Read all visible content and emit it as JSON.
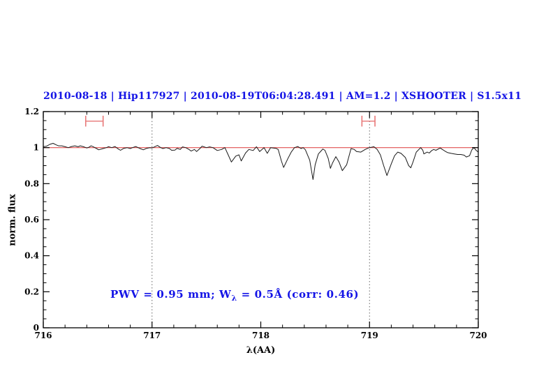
{
  "title": {
    "text": "2010-08-18 | Hip117927 | 2010-08-19T06:04:28.491 | AM=1.2 | XSHOOTER | S1.5x11",
    "color": "#1414e6"
  },
  "annotation": {
    "part1": "PWV = 0.95 mm; W",
    "sub": "λ",
    "part2": " = 0.5Å (corr: 0.46)",
    "color": "#1414e6"
  },
  "axes": {
    "x": {
      "label": "λ(AA)",
      "min": 716,
      "max": 720,
      "major_ticks": [
        716,
        717,
        718,
        719,
        720
      ],
      "major_tick_labels": [
        "716",
        "717",
        "718",
        "719",
        "720"
      ],
      "minor_step": 0.2
    },
    "y": {
      "label": "norm. flux",
      "min": 0,
      "max": 1.2,
      "major_ticks": [
        0,
        0.2,
        0.4,
        0.6,
        0.8,
        1,
        1.2
      ],
      "major_tick_labels": [
        "0",
        "0.2",
        "0.4",
        "0.6",
        "0.8",
        "1",
        "1.2"
      ],
      "minor_step": 0.05
    }
  },
  "colors": {
    "background": "#ffffff",
    "axis": "#000000",
    "spectrum": "#1a1a1a",
    "continuum": "#e05050",
    "marker": "#e87878",
    "dotted_guide": "#666666",
    "text_blue": "#1414e6"
  },
  "chart_data": {
    "type": "line",
    "title": "2010-08-18 | Hip117927 | 2010-08-19T06:04:28.491 | AM=1.2 | XSHOOTER | S1.5x11",
    "xlabel": "λ(AA)",
    "ylabel": "norm. flux",
    "xlim": [
      716,
      720
    ],
    "ylim": [
      0,
      1.2
    ],
    "grid": false,
    "legend": "none",
    "dotted_guides_x": [
      717,
      719
    ],
    "continuum_line": {
      "y": 1.0,
      "color": "#e05050"
    },
    "range_markers": [
      {
        "x_min": 716.39,
        "x_max": 716.55,
        "y": 1.147,
        "cap_half_height": 0.03,
        "color": "#e87878"
      },
      {
        "x_min": 718.93,
        "x_max": 719.05,
        "y": 1.147,
        "cap_half_height": 0.03,
        "color": "#e87878"
      }
    ],
    "series": [
      {
        "name": "normalized spectrum",
        "color": "#1a1a1a",
        "points": [
          [
            716.0,
            1.005
          ],
          [
            716.03,
            1.008
          ],
          [
            716.06,
            1.018
          ],
          [
            716.09,
            1.024
          ],
          [
            716.12,
            1.015
          ],
          [
            716.14,
            1.01
          ],
          [
            716.17,
            1.01
          ],
          [
            716.2,
            1.005
          ],
          [
            716.23,
            1.0
          ],
          [
            716.26,
            1.006
          ],
          [
            716.29,
            1.01
          ],
          [
            716.32,
            1.005
          ],
          [
            716.34,
            1.01
          ],
          [
            716.37,
            1.005
          ],
          [
            716.4,
            0.998
          ],
          [
            716.42,
            1.002
          ],
          [
            716.44,
            1.01
          ],
          [
            716.46,
            1.005
          ],
          [
            716.49,
            0.995
          ],
          [
            716.51,
            0.988
          ],
          [
            716.55,
            0.995
          ],
          [
            716.58,
            1.0
          ],
          [
            716.6,
            1.005
          ],
          [
            716.63,
            1.0
          ],
          [
            716.66,
            1.006
          ],
          [
            716.69,
            0.992
          ],
          [
            716.71,
            0.985
          ],
          [
            716.74,
            0.996
          ],
          [
            716.77,
            1.0
          ],
          [
            716.8,
            0.995
          ],
          [
            716.82,
            1.0
          ],
          [
            716.85,
            1.006
          ],
          [
            716.89,
            0.995
          ],
          [
            716.92,
            0.988
          ],
          [
            716.95,
            0.996
          ],
          [
            716.98,
            1.0
          ],
          [
            717.0,
            0.998
          ],
          [
            717.03,
            1.006
          ],
          [
            717.05,
            1.012
          ],
          [
            717.08,
            1.0
          ],
          [
            717.1,
            0.995
          ],
          [
            717.13,
            1.0
          ],
          [
            717.16,
            0.995
          ],
          [
            717.18,
            0.985
          ],
          [
            717.21,
            0.986
          ],
          [
            717.23,
            0.996
          ],
          [
            717.26,
            0.99
          ],
          [
            717.28,
            1.004
          ],
          [
            717.31,
            1.0
          ],
          [
            717.34,
            0.99
          ],
          [
            717.36,
            0.981
          ],
          [
            717.39,
            0.99
          ],
          [
            717.41,
            0.978
          ],
          [
            717.44,
            0.995
          ],
          [
            717.46,
            1.008
          ],
          [
            717.5,
            1.0
          ],
          [
            717.53,
            1.004
          ],
          [
            717.56,
            1.0
          ],
          [
            717.6,
            0.984
          ],
          [
            717.64,
            0.99
          ],
          [
            717.67,
            1.0
          ],
          [
            717.7,
            0.96
          ],
          [
            717.73,
            0.92
          ],
          [
            717.77,
            0.953
          ],
          [
            717.8,
            0.96
          ],
          [
            717.82,
            0.926
          ],
          [
            717.86,
            0.97
          ],
          [
            717.89,
            0.99
          ],
          [
            717.93,
            0.984
          ],
          [
            717.96,
            1.005
          ],
          [
            717.99,
            0.978
          ],
          [
            718.03,
            1.0
          ],
          [
            718.06,
            0.968
          ],
          [
            718.09,
            1.0
          ],
          [
            718.14,
            0.996
          ],
          [
            718.16,
            0.99
          ],
          [
            718.19,
            0.925
          ],
          [
            718.21,
            0.89
          ],
          [
            718.25,
            0.94
          ],
          [
            718.28,
            0.975
          ],
          [
            718.31,
            1.0
          ],
          [
            718.34,
            1.006
          ],
          [
            718.37,
            0.995
          ],
          [
            718.39,
            1.0
          ],
          [
            718.41,
            0.988
          ],
          [
            718.45,
            0.93
          ],
          [
            718.48,
            0.823
          ],
          [
            718.5,
            0.905
          ],
          [
            718.53,
            0.965
          ],
          [
            718.56,
            0.985
          ],
          [
            718.57,
            0.992
          ],
          [
            718.59,
            0.985
          ],
          [
            718.62,
            0.94
          ],
          [
            718.64,
            0.885
          ],
          [
            718.66,
            0.915
          ],
          [
            718.69,
            0.95
          ],
          [
            718.72,
            0.92
          ],
          [
            718.75,
            0.872
          ],
          [
            718.79,
            0.905
          ],
          [
            718.83,
            0.995
          ],
          [
            718.86,
            0.99
          ],
          [
            718.88,
            0.978
          ],
          [
            718.92,
            0.975
          ],
          [
            718.96,
            0.99
          ],
          [
            718.99,
            0.998
          ],
          [
            719.0,
            1.0
          ],
          [
            719.04,
            1.005
          ],
          [
            719.07,
            0.99
          ],
          [
            719.1,
            0.96
          ],
          [
            719.13,
            0.9
          ],
          [
            719.16,
            0.845
          ],
          [
            719.2,
            0.91
          ],
          [
            719.23,
            0.955
          ],
          [
            719.26,
            0.975
          ],
          [
            719.29,
            0.968
          ],
          [
            719.33,
            0.945
          ],
          [
            719.36,
            0.9
          ],
          [
            719.38,
            0.888
          ],
          [
            719.4,
            0.92
          ],
          [
            719.43,
            0.975
          ],
          [
            719.47,
            1.0
          ],
          [
            719.49,
            0.985
          ],
          [
            719.5,
            0.965
          ],
          [
            719.53,
            0.975
          ],
          [
            719.55,
            0.97
          ],
          [
            719.57,
            0.983
          ],
          [
            719.59,
            0.99
          ],
          [
            719.61,
            0.985
          ],
          [
            719.65,
            0.998
          ],
          [
            719.67,
            0.99
          ],
          [
            719.7,
            0.978
          ],
          [
            719.72,
            0.972
          ],
          [
            719.75,
            0.968
          ],
          [
            719.78,
            0.965
          ],
          [
            719.81,
            0.962
          ],
          [
            719.84,
            0.962
          ],
          [
            719.87,
            0.958
          ],
          [
            719.89,
            0.948
          ],
          [
            719.92,
            0.955
          ],
          [
            719.94,
            0.987
          ],
          [
            719.96,
            1.0
          ],
          [
            719.98,
            0.985
          ],
          [
            720.0,
            0.975
          ]
        ]
      }
    ]
  }
}
